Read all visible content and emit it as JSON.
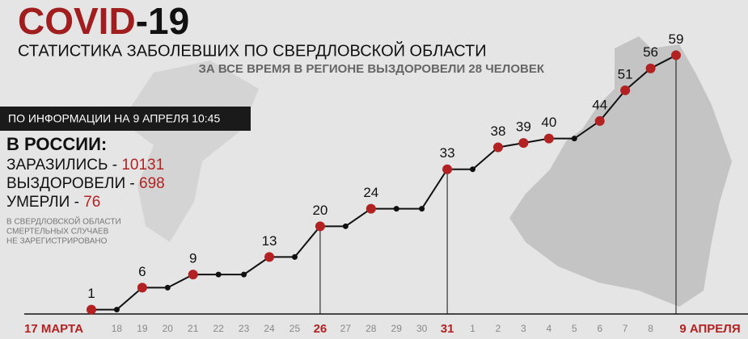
{
  "chart_data": {
    "type": "line",
    "title": [
      "COVID",
      "-19"
    ],
    "title_colors": [
      "#a01e1e",
      "#111111"
    ],
    "subtitle": "СТАТИСТИКА ЗАБОЛЕВШИХ ПО СВЕРДЛОВСКОЙ ОБЛАСТИ",
    "recovered_note": "ЗА ВСЕ ВРЕМЯ В РЕГИОНЕ ВЫЗДОРОВЕЛИ 28 ЧЕЛОВЕК",
    "info_box": "ПО ИНФОРМАЦИИ НА 9 АПРЕЛЯ 10:45",
    "russia_heading": "В РОССИИ:",
    "russia_stats": [
      {
        "label": "ЗАРАЗИЛИСЬ -",
        "value": 10131
      },
      {
        "label": "ВЫЗДОРОВЕЛИ -",
        "value": 698
      },
      {
        "label": "УМЕРЛИ -",
        "value": 76
      }
    ],
    "deaths_note": [
      "В СВЕРДЛОВСКОЙ ОБЛАСТИ",
      "СМЕРТЕЛЬНЫХ СЛУЧАЕВ",
      "НЕ ЗАРЕГИСТРИРОВАНО"
    ],
    "categories": [
      "17 МАРТА",
      "18",
      "19",
      "20",
      "21",
      "22",
      "23",
      "24",
      "25",
      "26",
      "27",
      "28",
      "29",
      "30",
      "31",
      "1",
      "2",
      "3",
      "4",
      "5",
      "6",
      "7",
      "8",
      "9 АПРЕЛЯ"
    ],
    "category_emphasis": [
      true,
      false,
      false,
      false,
      false,
      false,
      false,
      false,
      false,
      true,
      false,
      false,
      false,
      false,
      true,
      false,
      false,
      false,
      false,
      false,
      false,
      false,
      false,
      true
    ],
    "values": [
      1,
      1,
      6,
      6,
      9,
      9,
      9,
      13,
      13,
      20,
      20,
      24,
      24,
      24,
      33,
      33,
      38,
      39,
      40,
      40,
      44,
      51,
      56,
      59
    ],
    "show_label": [
      true,
      false,
      true,
      false,
      true,
      false,
      false,
      true,
      false,
      true,
      false,
      true,
      false,
      false,
      true,
      false,
      true,
      true,
      true,
      false,
      true,
      true,
      true,
      true
    ],
    "highlight_color": "#b22222",
    "color": "#111111",
    "ylim": [
      0,
      60
    ]
  }
}
